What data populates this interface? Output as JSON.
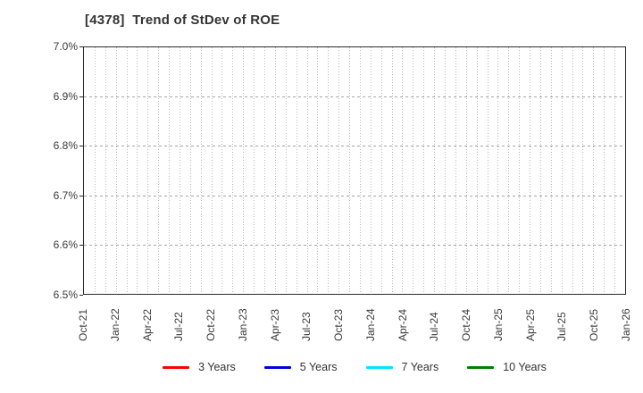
{
  "header": {
    "title": "[4378]  Trend of StDev of ROE"
  },
  "chart_data": {
    "type": "line",
    "title": "[4378]  Trend of StDev of ROE",
    "xlabel": "",
    "ylabel": "",
    "ylim": [
      6.5,
      7.0
    ],
    "y_tick_values": [
      7.0,
      6.9,
      6.8,
      6.7,
      6.6,
      6.5
    ],
    "y_tick_labels": [
      "7.0%",
      "6.9%",
      "6.8%",
      "6.7%",
      "6.6%",
      "6.5%"
    ],
    "x_tick_labels": [
      "Oct-21",
      "Jan-22",
      "Apr-22",
      "Jul-22",
      "Oct-22",
      "Jan-23",
      "Apr-23",
      "Jul-23",
      "Oct-23",
      "Jan-24",
      "Apr-24",
      "Jul-24",
      "Oct-24",
      "Jan-25",
      "Apr-25",
      "Jul-25",
      "Oct-25",
      "Jan-26"
    ],
    "x_minor_intervals_total": 51,
    "x_minor_per_major": 3,
    "grid": true,
    "legend_position": "bottom",
    "series": [
      {
        "name": "3 Years",
        "color": "#ff0000",
        "values": []
      },
      {
        "name": "5 Years",
        "color": "#0000dd",
        "values": []
      },
      {
        "name": "7 Years",
        "color": "#00e5ff",
        "values": []
      },
      {
        "name": "10 Years",
        "color": "#008000",
        "values": []
      }
    ]
  },
  "colors": {
    "background": "#ffffff",
    "title_text": "#333333",
    "axis_text": "#3a3a3a",
    "plot_border": "#2b2b2b",
    "grid_vertical": "#b9b9b9",
    "grid_horizontal": "#a6a6a6"
  }
}
